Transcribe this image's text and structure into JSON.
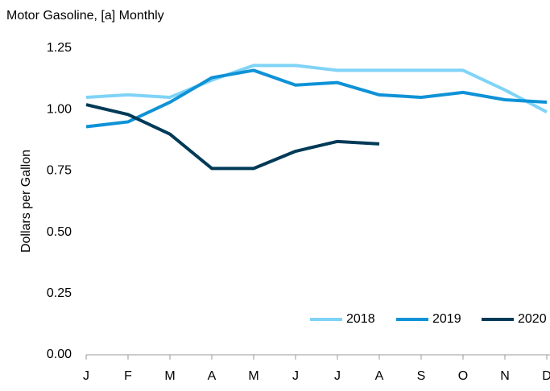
{
  "chart_data": {
    "type": "line",
    "title": "Motor Gasoline, [a] Monthly",
    "y_label": "Dollars per Gallon",
    "categories": [
      "J",
      "F",
      "M",
      "A",
      "M",
      "J",
      "J",
      "A",
      "S",
      "O",
      "N",
      "D"
    ],
    "series": [
      {
        "name": "2018",
        "color": "#7fd3f7",
        "values": [
          1.05,
          1.06,
          1.05,
          1.12,
          1.18,
          1.18,
          1.16,
          1.16,
          1.16,
          1.16,
          1.08,
          0.99
        ]
      },
      {
        "name": "2019",
        "color": "#0f92d6",
        "values": [
          0.93,
          0.95,
          1.03,
          1.13,
          1.16,
          1.1,
          1.11,
          1.06,
          1.05,
          1.07,
          1.04,
          1.03
        ]
      },
      {
        "name": "2020",
        "color": "#003a57",
        "values": [
          1.02,
          0.98,
          0.9,
          0.76,
          0.76,
          0.83,
          0.87,
          0.86,
          null,
          null,
          null,
          null
        ]
      }
    ],
    "ylim": [
      0,
      1.25
    ],
    "yticks": [
      {
        "value": 0,
        "label": "0.00"
      },
      {
        "value": 0.25,
        "label": "0.25"
      },
      {
        "value": 0.5,
        "label": "0.50"
      },
      {
        "value": 0.75,
        "label": "0.75"
      },
      {
        "value": 1,
        "label": "1.00"
      },
      {
        "value": 1.25,
        "label": "1.25"
      }
    ],
    "grid": false,
    "legend": "bottom-right"
  }
}
